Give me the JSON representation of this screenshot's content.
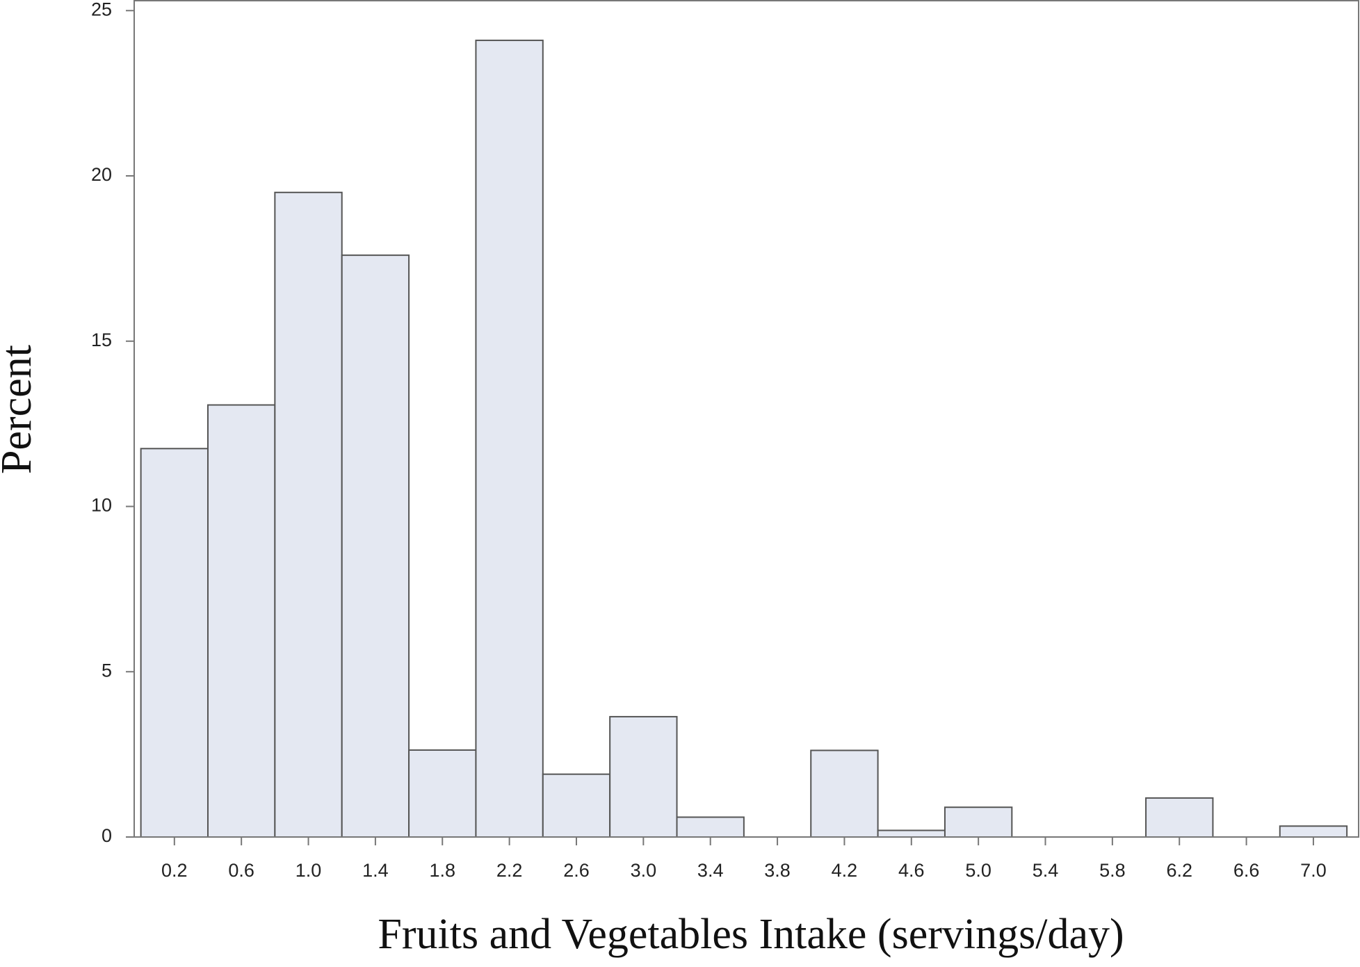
{
  "chart_data": {
    "type": "histogram",
    "x_label": "Fruits and Vegetables Intake (servings/day)",
    "y_label": "Percent",
    "bins": [
      0,
      0.4,
      0.8,
      1.2,
      1.6,
      2.0,
      2.4,
      2.8,
      3.2,
      3.6,
      4.0,
      4.4,
      4.8,
      5.2,
      5.6,
      6.0,
      6.4,
      6.8,
      7.2
    ],
    "values": [
      11.75,
      13.07,
      19.5,
      17.6,
      2.63,
      24.1,
      1.9,
      3.64,
      0.6,
      0,
      2.62,
      0.2,
      0.9,
      0,
      0,
      1.18,
      0,
      0.33
    ],
    "color": "#e4e8f2",
    "edge_color": "#555555",
    "xlim": [
      -0.04,
      7.27
    ],
    "xticks": [
      0.2,
      0.6,
      {
        "value": 1,
        "label": "1.0"
      },
      1.4,
      1.8,
      2.2,
      2.6,
      {
        "value": 3,
        "label": "3.0"
      },
      3.4,
      3.8,
      4.2,
      4.6,
      {
        "value": 5,
        "label": "5.0"
      },
      5.4,
      5.8,
      6.2,
      6.6,
      {
        "value": 7,
        "label": "7.0"
      }
    ],
    "ylim": [
      0,
      25.3
    ],
    "yticks": [
      0,
      5,
      10,
      15,
      20,
      25
    ],
    "grid": false
  }
}
